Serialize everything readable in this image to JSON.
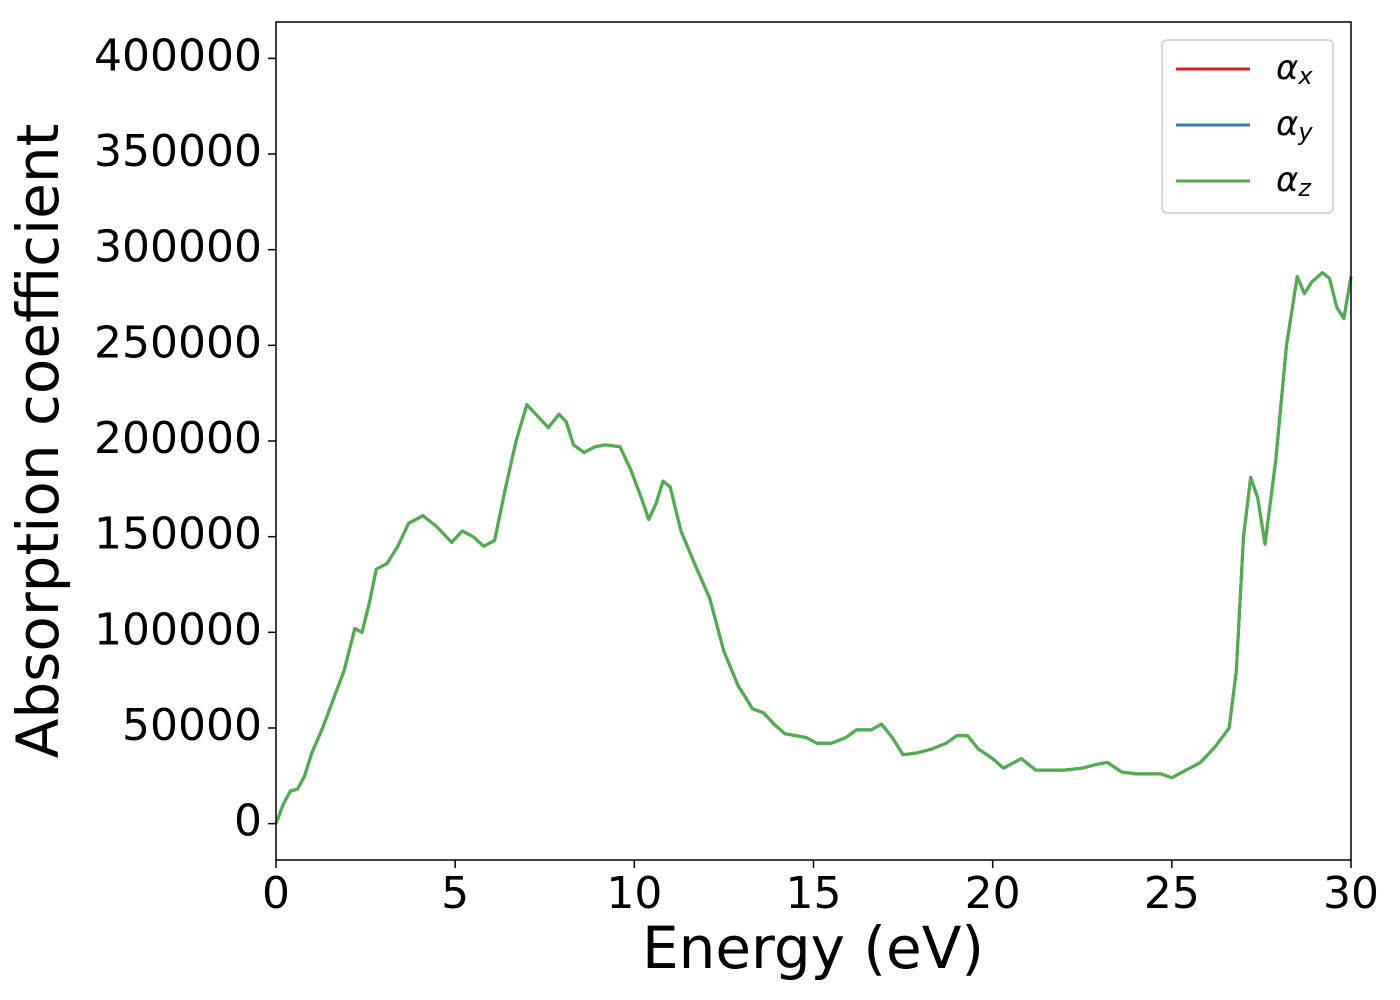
{
  "chart_data": {
    "type": "line",
    "xlabel": "Energy (eV)",
    "ylabel": "Absorption coefficient",
    "x": [
      0,
      0.2,
      0.4,
      0.6,
      0.8,
      1.0,
      1.3,
      1.6,
      1.9,
      2.2,
      2.4,
      2.6,
      2.8,
      3.1,
      3.4,
      3.7,
      4.1,
      4.5,
      4.9,
      5.2,
      5.5,
      5.8,
      6.1,
      6.4,
      6.7,
      7.0,
      7.3,
      7.6,
      7.9,
      8.1,
      8.3,
      8.6,
      8.9,
      9.2,
      9.6,
      9.9,
      10.2,
      10.4,
      10.6,
      10.8,
      11.0,
      11.3,
      11.7,
      12.1,
      12.5,
      12.9,
      13.3,
      13.6,
      13.9,
      14.2,
      14.5,
      14.8,
      15.1,
      15.5,
      15.9,
      16.2,
      16.6,
      16.9,
      17.2,
      17.5,
      17.9,
      18.3,
      18.7,
      19.0,
      19.3,
      19.6,
      20.0,
      20.3,
      20.6,
      20.8,
      21.2,
      21.6,
      22.0,
      22.5,
      22.9,
      23.2,
      23.6,
      24.0,
      24.4,
      24.7,
      25.0,
      25.4,
      25.8,
      26.2,
      26.6,
      26.8,
      27.0,
      27.2,
      27.4,
      27.6,
      27.9,
      28.2,
      28.5,
      28.7,
      28.9,
      29.2,
      29.4,
      29.6,
      29.8,
      30.0
    ],
    "series": [
      {
        "name": "αx",
        "color": "#e41a1c",
        "values": [
          0,
          10000,
          17000,
          18000,
          25000,
          37000,
          50000,
          65000,
          80000,
          102000,
          100000,
          115000,
          133000,
          136000,
          145000,
          157000,
          161000,
          155000,
          147000,
          153000,
          150000,
          145000,
          148000,
          175000,
          200000,
          219000,
          213000,
          207000,
          214000,
          210000,
          198000,
          194000,
          197000,
          198000,
          197000,
          185000,
          170000,
          159000,
          167000,
          179000,
          176000,
          153000,
          135000,
          118000,
          90000,
          72000,
          60000,
          58000,
          52000,
          47000,
          46000,
          45000,
          42000,
          42000,
          45000,
          49000,
          49000,
          52000,
          45000,
          36000,
          37000,
          39000,
          42000,
          46000,
          46000,
          39000,
          34000,
          29000,
          32000,
          34000,
          28000,
          28000,
          28000,
          29000,
          31000,
          32000,
          27000,
          26000,
          26000,
          26000,
          24000,
          28000,
          32000,
          40000,
          50000,
          80000,
          150000,
          181000,
          170000,
          146000,
          190000,
          250000,
          286000,
          277000,
          283000,
          288000,
          285000,
          270000,
          264000,
          286000
        ]
      },
      {
        "name": "αy",
        "color": "#377eb8",
        "values": [
          0,
          10000,
          17000,
          18000,
          25000,
          37000,
          50000,
          65000,
          80000,
          102000,
          100000,
          115000,
          133000,
          136000,
          145000,
          157000,
          161000,
          155000,
          147000,
          153000,
          150000,
          145000,
          148000,
          175000,
          200000,
          219000,
          213000,
          207000,
          214000,
          210000,
          198000,
          194000,
          197000,
          198000,
          197000,
          185000,
          170000,
          159000,
          167000,
          179000,
          176000,
          153000,
          135000,
          118000,
          90000,
          72000,
          60000,
          58000,
          52000,
          47000,
          46000,
          45000,
          42000,
          42000,
          45000,
          49000,
          49000,
          52000,
          45000,
          36000,
          37000,
          39000,
          42000,
          46000,
          46000,
          39000,
          34000,
          29000,
          32000,
          34000,
          28000,
          28000,
          28000,
          29000,
          31000,
          32000,
          27000,
          26000,
          26000,
          26000,
          24000,
          28000,
          32000,
          40000,
          50000,
          80000,
          150000,
          181000,
          170000,
          146000,
          190000,
          250000,
          286000,
          277000,
          283000,
          288000,
          285000,
          270000,
          264000,
          286000
        ]
      },
      {
        "name": "αz",
        "color": "#4daf4a",
        "values": [
          0,
          10000,
          17000,
          18000,
          25000,
          37000,
          50000,
          65000,
          80000,
          102000,
          100000,
          115000,
          133000,
          136000,
          145000,
          157000,
          161000,
          155000,
          147000,
          153000,
          150000,
          145000,
          148000,
          175000,
          200000,
          219000,
          213000,
          207000,
          214000,
          210000,
          198000,
          194000,
          197000,
          198000,
          197000,
          185000,
          170000,
          159000,
          167000,
          179000,
          176000,
          153000,
          135000,
          118000,
          90000,
          72000,
          60000,
          58000,
          52000,
          47000,
          46000,
          45000,
          42000,
          42000,
          45000,
          49000,
          49000,
          52000,
          45000,
          36000,
          37000,
          39000,
          42000,
          46000,
          46000,
          39000,
          34000,
          29000,
          32000,
          34000,
          28000,
          28000,
          28000,
          29000,
          31000,
          32000,
          27000,
          26000,
          26000,
          26000,
          24000,
          28000,
          32000,
          40000,
          50000,
          80000,
          150000,
          181000,
          170000,
          146000,
          190000,
          250000,
          286000,
          277000,
          283000,
          288000,
          285000,
          270000,
          264000,
          286000
        ]
      }
    ],
    "xlim": [
      0,
      30
    ],
    "xticks": [
      0,
      5,
      10,
      15,
      20,
      25,
      30
    ],
    "ylim": [
      -19000,
      419000
    ],
    "yticks": [
      0,
      50000,
      100000,
      150000,
      200000,
      250000,
      300000,
      350000,
      400000
    ],
    "legend": "upper right"
  }
}
